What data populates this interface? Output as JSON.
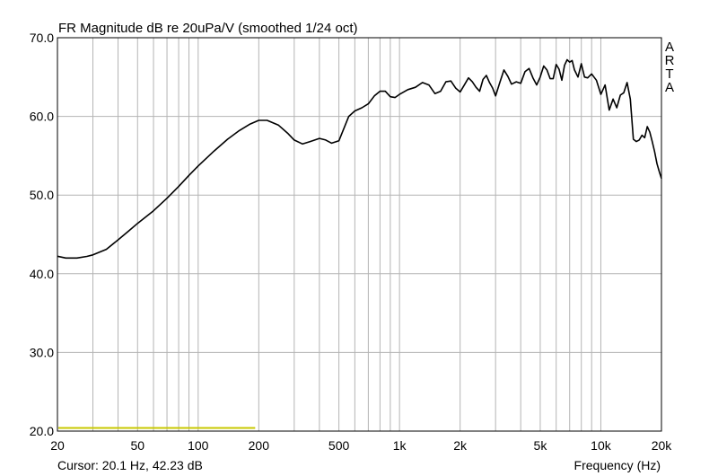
{
  "chart_data": {
    "type": "line",
    "title": "FR Magnitude dB re 20uPa/V (smoothed 1/24 oct)",
    "xlabel": "Frequency (Hz)",
    "ylabel": "",
    "x_scale": "log",
    "xlim": [
      20,
      20000
    ],
    "ylim": [
      20,
      70
    ],
    "grid": true,
    "x_ticks": [
      {
        "value": 20,
        "label": "20"
      },
      {
        "value": 50,
        "label": "50"
      },
      {
        "value": 100,
        "label": "100"
      },
      {
        "value": 200,
        "label": "200"
      },
      {
        "value": 500,
        "label": "500"
      },
      {
        "value": 1000,
        "label": "1k"
      },
      {
        "value": 2000,
        "label": "2k"
      },
      {
        "value": 5000,
        "label": "5k"
      },
      {
        "value": 10000,
        "label": "10k"
      },
      {
        "value": 20000,
        "label": "20k"
      }
    ],
    "y_ticks": [
      {
        "value": 20,
        "label": "20.0"
      },
      {
        "value": 30,
        "label": "30.0"
      },
      {
        "value": 40,
        "label": "40.0"
      },
      {
        "value": 50,
        "label": "50.0"
      },
      {
        "value": 60,
        "label": "60.0"
      },
      {
        "value": 70,
        "label": "70.0"
      }
    ],
    "cursor_text": "Cursor: 20.1 Hz, 42.23 dB",
    "logo_letters": [
      "A",
      "R",
      "T",
      "A"
    ],
    "colors": {
      "curve": "#000000",
      "grid": "#b4b4b4",
      "frame": "#000000",
      "marker": "#c8c800"
    },
    "marker_range": {
      "x": [
        20,
        200
      ],
      "y": 20.4
    },
    "series": [
      {
        "x": [
          20,
          22,
          25,
          28,
          30,
          35,
          40,
          45,
          50,
          60,
          70,
          80,
          90,
          100,
          120,
          140,
          160,
          180,
          200,
          220,
          250,
          280,
          300,
          330,
          360,
          400,
          430,
          460,
          500,
          530,
          560,
          600,
          650,
          700,
          750,
          800,
          850,
          900,
          950,
          1000,
          1100,
          1200,
          1300,
          1400,
          1500,
          1600,
          1700,
          1800,
          1900,
          2000,
          2100,
          2200,
          2300,
          2400,
          2500,
          2600,
          2700,
          2800,
          2900,
          3000,
          3150,
          3300,
          3450,
          3600,
          3800,
          4000,
          4200,
          4400,
          4600,
          4800,
          5000,
          5200,
          5400,
          5600,
          5800,
          6000,
          6200,
          6400,
          6600,
          6800,
          7000,
          7200,
          7400,
          7700,
          8000,
          8300,
          8600,
          9000,
          9500,
          10000,
          10500,
          11000,
          11500,
          12000,
          12500,
          13000,
          13500,
          14000,
          14500,
          15000,
          15500,
          16000,
          16500,
          17000,
          17500,
          18000,
          18500,
          19000,
          19500,
          20000
        ],
        "y": [
          42.23,
          42.0,
          42.0,
          42.2,
          42.4,
          43.1,
          44.3,
          45.4,
          46.4,
          48.0,
          49.6,
          51.1,
          52.5,
          53.7,
          55.6,
          57.1,
          58.2,
          59.0,
          59.5,
          59.5,
          58.9,
          57.8,
          57.0,
          56.5,
          56.8,
          57.2,
          57.0,
          56.6,
          56.9,
          58.5,
          60.0,
          60.7,
          61.1,
          61.6,
          62.6,
          63.2,
          63.2,
          62.5,
          62.4,
          62.8,
          63.4,
          63.7,
          64.3,
          64.0,
          62.9,
          63.2,
          64.4,
          64.5,
          63.6,
          63.1,
          64.0,
          64.9,
          64.4,
          63.7,
          63.2,
          64.7,
          65.2,
          64.3,
          63.6,
          62.6,
          64.3,
          65.9,
          65.1,
          64.1,
          64.4,
          64.2,
          65.7,
          66.1,
          64.9,
          64.0,
          65.0,
          66.4,
          65.9,
          64.8,
          64.8,
          66.6,
          66.0,
          64.6,
          66.5,
          67.2,
          66.9,
          67.1,
          65.9,
          65.0,
          66.7,
          65.0,
          64.9,
          65.4,
          64.6,
          62.8,
          64.0,
          60.8,
          62.2,
          61.1,
          62.7,
          63.0,
          64.3,
          62.2,
          57.1,
          56.8,
          57.0,
          57.6,
          57.3,
          58.7,
          58.0,
          56.8,
          55.5,
          54.0,
          53.0,
          52.1
        ]
      }
    ]
  }
}
